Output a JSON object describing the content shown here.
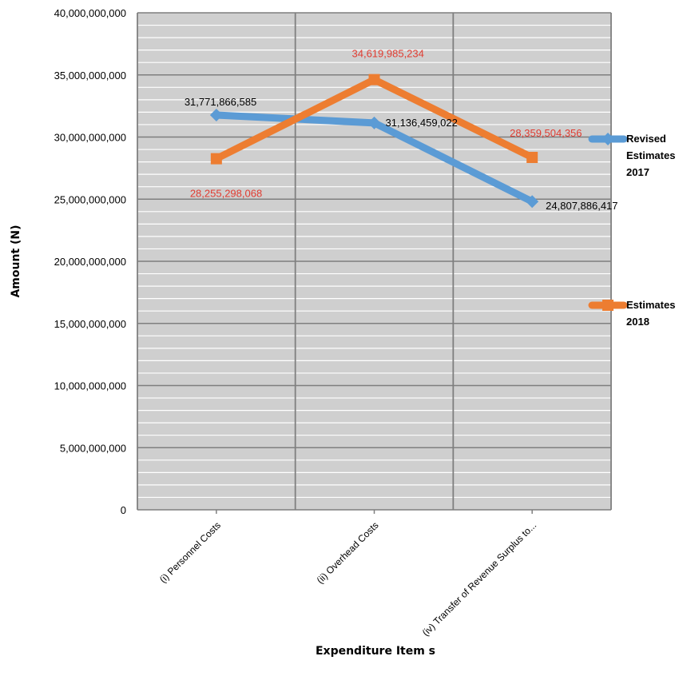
{
  "chart_data": {
    "type": "line",
    "title": "",
    "xlabel": "Expenditure Item s",
    "ylabel": "Amount (N)",
    "categories": [
      "(i) Personnel Costs",
      "(ii) Overhead Costs",
      "(iv) Transfer of Revenue Surplus to..."
    ],
    "ylim": [
      0,
      40000000000
    ],
    "yticks": [
      0,
      5000000000,
      10000000000,
      15000000000,
      20000000000,
      25000000000,
      30000000000,
      35000000000,
      40000000000
    ],
    "ytick_labels": [
      "0",
      "5,000,000,000",
      "10,000,000,000",
      "15,000,000,000",
      "20,000,000,000",
      "25,000,000,000",
      "30,000,000,000",
      "35,000,000,000",
      "40,000,000,000"
    ],
    "grid": true,
    "legend_position": "right",
    "series": [
      {
        "name": "Revised Estimates 2017",
        "legend_lines": [
          "Revised",
          "Estimates",
          "2017"
        ],
        "color": "#5b9bd5",
        "label_color": "#000000",
        "marker": "diamond",
        "values": [
          31771866585,
          31136459022,
          24807886417
        ],
        "data_labels": [
          "31,771,866,585",
          "31,136,459,022",
          "24,807,886,417"
        ]
      },
      {
        "name": "Estimates 2018",
        "legend_lines": [
          "Estimates",
          "2018"
        ],
        "color": "#ed7d31",
        "label_color": "#e03c31",
        "marker": "square",
        "values": [
          28255298068,
          34619985234,
          28359504356
        ],
        "data_labels": [
          "28,255,298,068",
          "34,619,985,234",
          "28,359,504,356"
        ]
      }
    ]
  }
}
